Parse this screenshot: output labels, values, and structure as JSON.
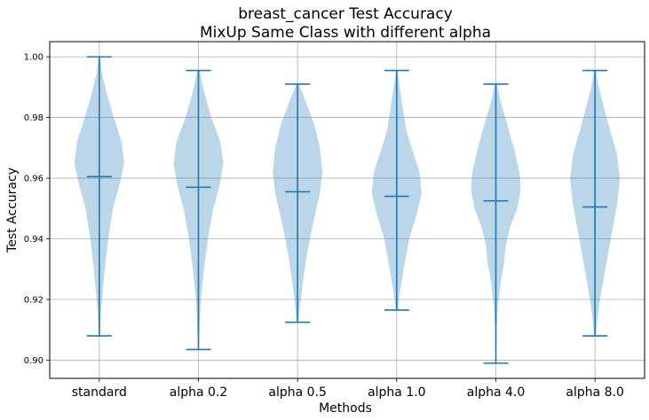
{
  "chart_data": {
    "type": "violin",
    "title": "breast_cancer Test Accuracy",
    "subtitle": "MixUp Same Class with different alpha",
    "xlabel": "Methods",
    "ylabel": "Test Accuracy",
    "ylim": [
      0.894,
      1.005
    ],
    "yticks": [
      "0.90",
      "0.92",
      "0.94",
      "0.96",
      "0.98",
      "1.00"
    ],
    "ytick_values": [
      0.9,
      0.92,
      0.94,
      0.96,
      0.98,
      1.0
    ],
    "grid": true,
    "color": "#1f77b4",
    "categories": [
      "standard",
      "alpha 0.2",
      "alpha 0.5",
      "alpha 1.0",
      "alpha 4.0",
      "alpha 8.0"
    ],
    "violins": [
      {
        "min": 0.908,
        "max": 1.0,
        "mean": 0.9605,
        "profile": [
          [
            0.908,
            0.02
          ],
          [
            0.915,
            0.06
          ],
          [
            0.922,
            0.13
          ],
          [
            0.93,
            0.22
          ],
          [
            0.94,
            0.36
          ],
          [
            0.95,
            0.55
          ],
          [
            0.958,
            0.82
          ],
          [
            0.965,
            1.0
          ],
          [
            0.972,
            0.9
          ],
          [
            0.98,
            0.58
          ],
          [
            0.988,
            0.3
          ],
          [
            0.994,
            0.12
          ],
          [
            1.0,
            0.03
          ]
        ]
      },
      {
        "min": 0.9035,
        "max": 0.9955,
        "mean": 0.957,
        "profile": [
          [
            0.9035,
            0.02
          ],
          [
            0.912,
            0.05
          ],
          [
            0.92,
            0.1
          ],
          [
            0.93,
            0.22
          ],
          [
            0.94,
            0.38
          ],
          [
            0.95,
            0.6
          ],
          [
            0.958,
            0.86
          ],
          [
            0.965,
            1.0
          ],
          [
            0.972,
            0.88
          ],
          [
            0.98,
            0.52
          ],
          [
            0.988,
            0.24
          ],
          [
            0.9955,
            0.04
          ]
        ]
      },
      {
        "min": 0.9125,
        "max": 0.991,
        "mean": 0.9555,
        "profile": [
          [
            0.9125,
            0.03
          ],
          [
            0.918,
            0.1
          ],
          [
            0.925,
            0.2
          ],
          [
            0.935,
            0.38
          ],
          [
            0.945,
            0.62
          ],
          [
            0.955,
            0.9
          ],
          [
            0.962,
            1.0
          ],
          [
            0.97,
            0.9
          ],
          [
            0.978,
            0.66
          ],
          [
            0.985,
            0.34
          ],
          [
            0.991,
            0.05
          ]
        ]
      },
      {
        "min": 0.9165,
        "max": 0.9955,
        "mean": 0.954,
        "profile": [
          [
            0.9165,
            0.04
          ],
          [
            0.922,
            0.12
          ],
          [
            0.93,
            0.28
          ],
          [
            0.94,
            0.5
          ],
          [
            0.948,
            0.8
          ],
          [
            0.955,
            1.0
          ],
          [
            0.962,
            0.92
          ],
          [
            0.97,
            0.6
          ],
          [
            0.976,
            0.38
          ],
          [
            0.983,
            0.25
          ],
          [
            0.99,
            0.12
          ],
          [
            0.9955,
            0.03
          ]
        ]
      },
      {
        "min": 0.899,
        "max": 0.991,
        "mean": 0.9525,
        "profile": [
          [
            0.899,
            0.01
          ],
          [
            0.91,
            0.03
          ],
          [
            0.918,
            0.08
          ],
          [
            0.926,
            0.2
          ],
          [
            0.932,
            0.33
          ],
          [
            0.938,
            0.4
          ],
          [
            0.944,
            0.58
          ],
          [
            0.95,
            0.86
          ],
          [
            0.956,
            1.0
          ],
          [
            0.962,
            0.95
          ],
          [
            0.97,
            0.72
          ],
          [
            0.978,
            0.45
          ],
          [
            0.985,
            0.2
          ],
          [
            0.991,
            0.04
          ]
        ]
      },
      {
        "min": 0.908,
        "max": 0.9955,
        "mean": 0.9505,
        "profile": [
          [
            0.908,
            0.03
          ],
          [
            0.914,
            0.1
          ],
          [
            0.922,
            0.24
          ],
          [
            0.932,
            0.46
          ],
          [
            0.942,
            0.68
          ],
          [
            0.952,
            0.9
          ],
          [
            0.96,
            1.0
          ],
          [
            0.968,
            0.88
          ],
          [
            0.976,
            0.6
          ],
          [
            0.984,
            0.34
          ],
          [
            0.99,
            0.15
          ],
          [
            0.9955,
            0.03
          ]
        ]
      }
    ]
  }
}
